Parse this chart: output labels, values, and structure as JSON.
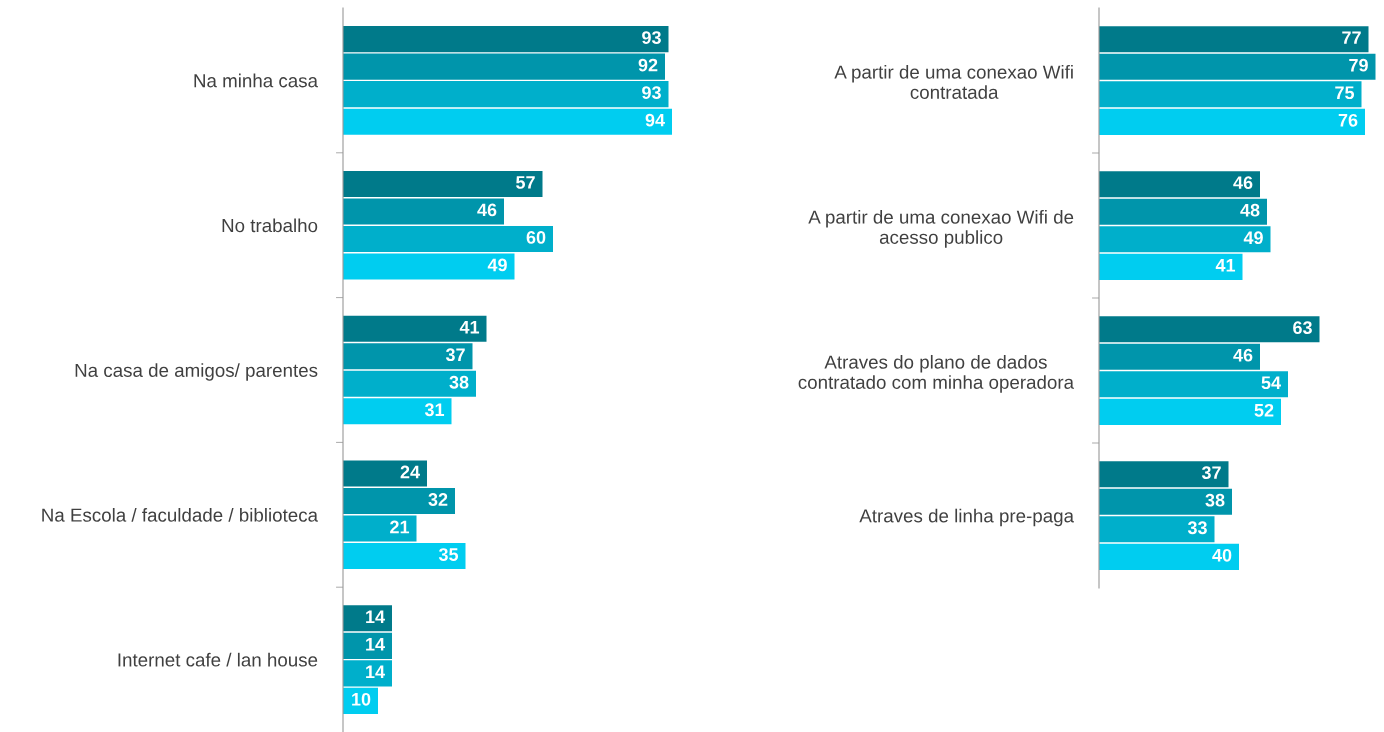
{
  "chart_data": [
    {
      "type": "bar",
      "orientation": "horizontal",
      "categories": [
        "Na minha casa",
        "No trabalho",
        "Na casa de amigos/ parentes",
        "Na Escola / faculdade / biblioteca",
        "Internet cafe / lan house"
      ],
      "tick_labels": "y",
      "data_labels": true,
      "series": [
        {
          "color": "#007a8a",
          "values": [
            93,
            57,
            41,
            24,
            14
          ]
        },
        {
          "color": "#0095ab",
          "values": [
            92,
            46,
            37,
            32,
            14
          ]
        },
        {
          "color": "#00afcb",
          "values": [
            93,
            60,
            38,
            21,
            14
          ]
        },
        {
          "color": "#00cdf0",
          "values": [
            94,
            49,
            31,
            35,
            10
          ]
        }
      ]
    },
    {
      "type": "bar",
      "orientation": "horizontal",
      "categories": [
        "A partir de uma conexao Wifi\ncontratada",
        "A partir de uma conexao Wifi de\nacesso publico",
        "Atraves do plano de dados\ncontratado com minha operadora",
        "Atraves de linha pre-paga"
      ],
      "tick_labels": "y",
      "data_labels": true,
      "series": [
        {
          "color": "#007a8a",
          "values": [
            77,
            46,
            63,
            37
          ]
        },
        {
          "color": "#0095ab",
          "values": [
            79,
            48,
            46,
            38
          ]
        },
        {
          "color": "#00afcb",
          "values": [
            75,
            49,
            54,
            33
          ]
        },
        {
          "color": "#00cdf0",
          "values": [
            76,
            41,
            52,
            40
          ]
        }
      ]
    }
  ]
}
